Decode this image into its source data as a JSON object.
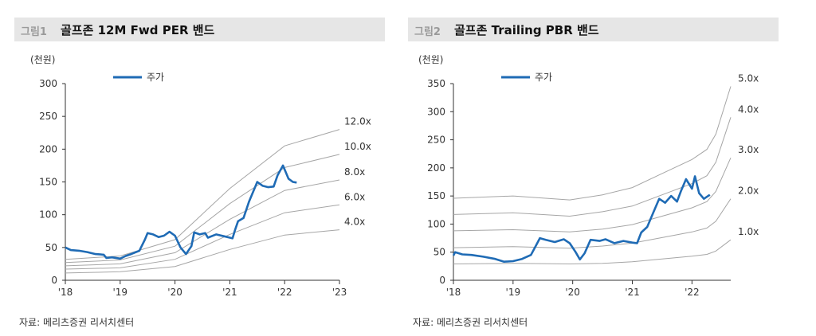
{
  "charts": [
    {
      "figure_no": "그림1",
      "title": "골프존 12M Fwd PER 밴드",
      "source": "자료: 메리츠증권 리서치센터",
      "unit_label": "(천원)",
      "legend_label": "주가"
    },
    {
      "figure_no": "그림2",
      "title": "골프존 Trailing PBR 밴드",
      "source": "자료: 메리츠증권 리서치센터",
      "unit_label": "(천원)",
      "legend_label": "주가"
    }
  ],
  "colors": {
    "price": "#1f6bb5",
    "band": "#a6a6a6",
    "axis": "#333333"
  },
  "chart_data": [
    {
      "type": "line",
      "title": "골프존 12M Fwd PER 밴드",
      "ylabel": "(천원)",
      "ylim": [
        0,
        300
      ],
      "yticks": [
        0,
        50,
        100,
        150,
        200,
        250,
        300
      ],
      "xlim": [
        2018,
        2023
      ],
      "xticks": [
        {
          "v": 2018,
          "label": "'18"
        },
        {
          "v": 2019,
          "label": "'19"
        },
        {
          "v": 2020,
          "label": "'20"
        },
        {
          "v": 2021,
          "label": "'21"
        },
        {
          "v": 2022,
          "label": "'22"
        },
        {
          "v": 2023,
          "label": "'23"
        }
      ],
      "legend": "top-left",
      "bands": [
        {
          "label": "12.0x",
          "points": [
            [
              2018,
              32
            ],
            [
              2019,
              37
            ],
            [
              2020,
              62
            ],
            [
              2021,
              140
            ],
            [
              2022,
              205
            ],
            [
              2023,
              230
            ]
          ]
        },
        {
          "label": "10.0x",
          "points": [
            [
              2018,
              27
            ],
            [
              2019,
              31
            ],
            [
              2020,
              52
            ],
            [
              2021,
              117
            ],
            [
              2022,
              172
            ],
            [
              2023,
              192
            ]
          ]
        },
        {
          "label": "8.0x",
          "points": [
            [
              2018,
              22
            ],
            [
              2019,
              25
            ],
            [
              2020,
              42
            ],
            [
              2021,
              93
            ],
            [
              2022,
              137
            ],
            [
              2023,
              153
            ]
          ]
        },
        {
          "label": "6.0x",
          "points": [
            [
              2018,
              17
            ],
            [
              2019,
              19
            ],
            [
              2020,
              32
            ],
            [
              2021,
              70
            ],
            [
              2022,
              103
            ],
            [
              2023,
              115
            ]
          ]
        },
        {
          "label": "4.0x",
          "points": [
            [
              2018,
              11
            ],
            [
              2019,
              13
            ],
            [
              2020,
              21
            ],
            [
              2021,
              47
            ],
            [
              2022,
              69
            ],
            [
              2023,
              77
            ]
          ]
        }
      ],
      "series": [
        {
          "name": "주가",
          "points": [
            [
              2018.0,
              50
            ],
            [
              2018.1,
              46
            ],
            [
              2018.25,
              45
            ],
            [
              2018.4,
              43
            ],
            [
              2018.55,
              40
            ],
            [
              2018.7,
              39
            ],
            [
              2018.75,
              34
            ],
            [
              2018.85,
              35
            ],
            [
              2019.0,
              33
            ],
            [
              2019.1,
              37
            ],
            [
              2019.2,
              40
            ],
            [
              2019.35,
              45
            ],
            [
              2019.45,
              62
            ],
            [
              2019.5,
              72
            ],
            [
              2019.6,
              70
            ],
            [
              2019.7,
              66
            ],
            [
              2019.8,
              68
            ],
            [
              2019.9,
              74
            ],
            [
              2020.0,
              68
            ],
            [
              2020.1,
              50
            ],
            [
              2020.2,
              40
            ],
            [
              2020.3,
              52
            ],
            [
              2020.35,
              73
            ],
            [
              2020.45,
              70
            ],
            [
              2020.55,
              72
            ],
            [
              2020.6,
              65
            ],
            [
              2020.75,
              70
            ],
            [
              2020.9,
              67
            ],
            [
              2021.0,
              65
            ],
            [
              2021.05,
              64
            ],
            [
              2021.1,
              78
            ],
            [
              2021.15,
              90
            ],
            [
              2021.25,
              95
            ],
            [
              2021.35,
              120
            ],
            [
              2021.45,
              140
            ],
            [
              2021.5,
              150
            ],
            [
              2021.6,
              144
            ],
            [
              2021.7,
              142
            ],
            [
              2021.8,
              143
            ],
            [
              2021.87,
              160
            ],
            [
              2021.97,
              175
            ],
            [
              2022.07,
              155
            ],
            [
              2022.15,
              150
            ],
            [
              2022.22,
              149
            ]
          ]
        }
      ]
    },
    {
      "type": "line",
      "title": "골프존 Trailing PBR 밴드",
      "ylabel": "(천원)",
      "ylim": [
        0,
        350
      ],
      "yticks": [
        0,
        50,
        100,
        150,
        200,
        250,
        300,
        350
      ],
      "xlim": [
        2018,
        2022.65
      ],
      "xticks": [
        {
          "v": 2018,
          "label": "'18"
        },
        {
          "v": 2019,
          "label": "'19"
        },
        {
          "v": 2020,
          "label": "'20"
        },
        {
          "v": 2021,
          "label": "'21"
        },
        {
          "v": 2022,
          "label": "'22"
        }
      ],
      "legend": "top-left",
      "bands": [
        {
          "label": "5.0x",
          "points": [
            [
              2018,
              146
            ],
            [
              2019,
              150
            ],
            [
              2019.95,
              143
            ],
            [
              2020.5,
              152
            ],
            [
              2021,
              165
            ],
            [
              2021.5,
              190
            ],
            [
              2022.0,
              215
            ],
            [
              2022.25,
              233
            ],
            [
              2022.4,
              260
            ],
            [
              2022.65,
              345
            ]
          ]
        },
        {
          "label": "4.0x",
          "points": [
            [
              2018,
              117
            ],
            [
              2019,
              120
            ],
            [
              2019.95,
              114
            ],
            [
              2020.5,
              122
            ],
            [
              2021,
              132
            ],
            [
              2021.5,
              152
            ],
            [
              2022.0,
              172
            ],
            [
              2022.25,
              186
            ],
            [
              2022.4,
              210
            ],
            [
              2022.65,
              290
            ]
          ]
        },
        {
          "label": "3.0x",
          "points": [
            [
              2018,
              88
            ],
            [
              2019,
              90
            ],
            [
              2019.95,
              86
            ],
            [
              2020.5,
              91
            ],
            [
              2021,
              99
            ],
            [
              2021.5,
              114
            ],
            [
              2022.0,
              129
            ],
            [
              2022.25,
              140
            ],
            [
              2022.4,
              158
            ],
            [
              2022.65,
              218
            ]
          ]
        },
        {
          "label": "2.0x",
          "points": [
            [
              2018,
              58
            ],
            [
              2019,
              60
            ],
            [
              2019.95,
              57
            ],
            [
              2020.5,
              61
            ],
            [
              2021,
              66
            ],
            [
              2021.5,
              76
            ],
            [
              2022.0,
              86
            ],
            [
              2022.25,
              93
            ],
            [
              2022.4,
              105
            ],
            [
              2022.65,
              145
            ]
          ]
        },
        {
          "label": "1.0x",
          "points": [
            [
              2018,
              29
            ],
            [
              2019,
              30
            ],
            [
              2019.95,
              29
            ],
            [
              2020.5,
              30
            ],
            [
              2021,
              33
            ],
            [
              2021.5,
              38
            ],
            [
              2022.0,
              43
            ],
            [
              2022.25,
              46
            ],
            [
              2022.4,
              52
            ],
            [
              2022.65,
              72
            ]
          ]
        }
      ],
      "series": [
        {
          "name": "주가",
          "points": [
            [
              2018.0,
              44
            ],
            [
              2018.03,
              50
            ],
            [
              2018.15,
              46
            ],
            [
              2018.3,
              45
            ],
            [
              2018.5,
              42
            ],
            [
              2018.7,
              38
            ],
            [
              2018.85,
              33
            ],
            [
              2019.0,
              34
            ],
            [
              2019.15,
              38
            ],
            [
              2019.3,
              45
            ],
            [
              2019.4,
              65
            ],
            [
              2019.45,
              75
            ],
            [
              2019.55,
              72
            ],
            [
              2019.7,
              68
            ],
            [
              2019.85,
              73
            ],
            [
              2019.95,
              66
            ],
            [
              2020.05,
              50
            ],
            [
              2020.12,
              37
            ],
            [
              2020.2,
              48
            ],
            [
              2020.3,
              72
            ],
            [
              2020.45,
              70
            ],
            [
              2020.55,
              73
            ],
            [
              2020.7,
              66
            ],
            [
              2020.85,
              70
            ],
            [
              2021.0,
              67
            ],
            [
              2021.08,
              66
            ],
            [
              2021.15,
              85
            ],
            [
              2021.25,
              95
            ],
            [
              2021.35,
              120
            ],
            [
              2021.45,
              145
            ],
            [
              2021.55,
              138
            ],
            [
              2021.65,
              150
            ],
            [
              2021.75,
              140
            ],
            [
              2021.82,
              160
            ],
            [
              2021.9,
              180
            ],
            [
              2022.0,
              163
            ],
            [
              2022.05,
              185
            ],
            [
              2022.12,
              155
            ],
            [
              2022.2,
              145
            ],
            [
              2022.3,
              152
            ]
          ]
        }
      ]
    }
  ]
}
